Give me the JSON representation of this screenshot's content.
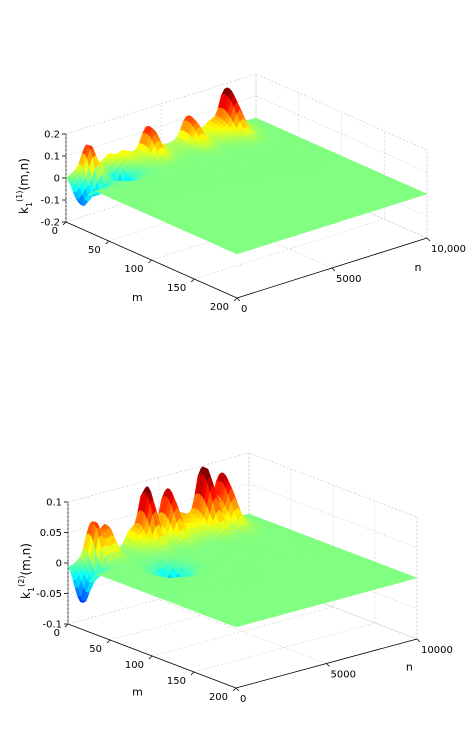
{
  "chart_data": [
    {
      "type": "surface",
      "zlabel_main": "k",
      "zlabel_sub": "1",
      "zlabel_sup": "(1)",
      "zlabel_args": "(m,n)",
      "xlabel": "m",
      "ylabel": "n",
      "z_ticks": [
        "-0.2",
        "-0.1",
        "0",
        "0.1",
        "0.2"
      ],
      "z_tick_values": [
        -0.2,
        -0.1,
        0,
        0.1,
        0.2
      ],
      "zlim": [
        -0.2,
        0.2
      ],
      "m_ticks": [
        "0",
        "50",
        "100",
        "150",
        "200"
      ],
      "m_tick_values": [
        0,
        50,
        100,
        150,
        200
      ],
      "mlim": [
        0,
        200
      ],
      "n_ticks": [
        "0",
        "5000",
        "10,000"
      ],
      "n_tick_values": [
        0,
        5000,
        10000
      ],
      "nlim": [
        0,
        10000
      ],
      "grid": true,
      "colormap": "jet",
      "peaks": [
        {
          "m": 5,
          "n": 1000,
          "z": 0.16
        },
        {
          "m": 5,
          "n": 2500,
          "z": 0.11
        },
        {
          "m": 5,
          "n": 4200,
          "z": 0.13
        },
        {
          "m": 5,
          "n": 6400,
          "z": 0.12
        },
        {
          "m": 5,
          "n": 8200,
          "z": 0.2
        },
        {
          "m": 15,
          "n": 500,
          "z": -0.17
        },
        {
          "m": 15,
          "n": 2200,
          "z": -0.13
        }
      ]
    },
    {
      "type": "surface",
      "zlabel_main": "k",
      "zlabel_sub": "1",
      "zlabel_sup": "(2)",
      "zlabel_args": "(m,n)",
      "xlabel": "m",
      "ylabel": "n",
      "z_ticks": [
        "-0.1",
        "-0.05",
        "0",
        "0.05",
        "0.1"
      ],
      "z_tick_values": [
        -0.1,
        -0.05,
        0,
        0.05,
        0.1
      ],
      "zlim": [
        -0.1,
        0.1
      ],
      "m_ticks": [
        "0",
        "50",
        "100",
        "150",
        "200"
      ],
      "m_tick_values": [
        0,
        50,
        100,
        150,
        200
      ],
      "mlim": [
        0,
        200
      ],
      "n_ticks": [
        "0",
        "5000",
        "10000"
      ],
      "n_tick_values": [
        0,
        5000,
        10000
      ],
      "nlim": [
        0,
        10000
      ],
      "grid": true,
      "colormap": "jet",
      "peaks": [
        {
          "m": 5,
          "n": 1500,
          "z": 0.09
        },
        {
          "m": 5,
          "n": 4000,
          "z": 0.1
        },
        {
          "m": 5,
          "n": 5500,
          "z": 0.09
        },
        {
          "m": 5,
          "n": 7200,
          "z": 0.1
        },
        {
          "m": 5,
          "n": 8300,
          "z": 0.08
        },
        {
          "m": 15,
          "n": 300,
          "z": -0.07
        },
        {
          "m": 60,
          "n": 3000,
          "z": -0.06
        }
      ]
    }
  ]
}
